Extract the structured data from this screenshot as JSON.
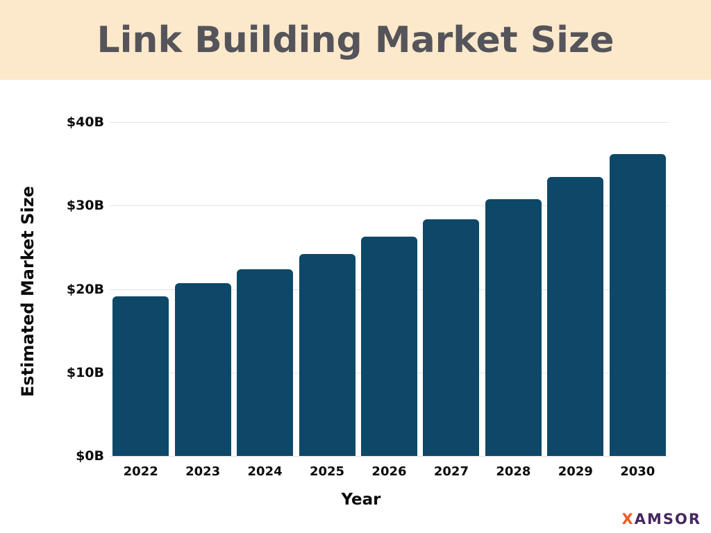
{
  "header": {
    "title": "Link Building Market Size",
    "background": "#fce8cb",
    "text_color": "#55545a"
  },
  "chart_data": {
    "type": "bar",
    "title": "Link Building Market Size",
    "categories": [
      "2022",
      "2023",
      "2024",
      "2025",
      "2026",
      "2027",
      "2028",
      "2029",
      "2030"
    ],
    "values": [
      19.1,
      20.7,
      22.4,
      24.2,
      26.3,
      28.4,
      30.8,
      33.4,
      36.2
    ],
    "xlabel": "Year",
    "ylabel": "Estimated Market Size",
    "ylim": [
      0,
      40
    ],
    "yticks": [
      {
        "value": 0,
        "label": "$0B"
      },
      {
        "value": 10,
        "label": "$10B"
      },
      {
        "value": 20,
        "label": "$20B"
      },
      {
        "value": 30,
        "label": "$30B"
      },
      {
        "value": 40,
        "label": "$40B"
      }
    ],
    "grid": true,
    "legend_position": "none",
    "bar_color": "#0d4868",
    "grid_color": "#e2e2e2"
  },
  "footer": {
    "logo_prefix": "X",
    "logo_rest": "AMSOR",
    "logo_prefix_color": "#f15a24",
    "logo_rest_color": "#46265f"
  }
}
